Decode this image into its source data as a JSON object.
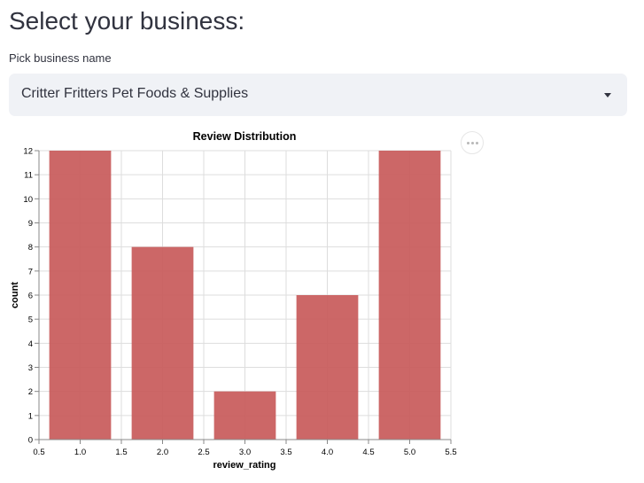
{
  "page": {
    "title": "Select your business:"
  },
  "business_select": {
    "label": "Pick business name",
    "value": "Critter Fritters Pet Foods & Supplies"
  },
  "chart_data": {
    "type": "bar",
    "title": "Review Distribution",
    "xlabel": "review_rating",
    "ylabel": "count",
    "x": [
      1,
      2,
      3,
      4,
      5
    ],
    "values": [
      12,
      8,
      2,
      6,
      12
    ],
    "xlim": [
      0.5,
      5.5
    ],
    "ylim": [
      0,
      12
    ],
    "xticks": [
      "0.5",
      "1.0",
      "1.5",
      "2.0",
      "2.5",
      "3.0",
      "3.5",
      "4.0",
      "4.5",
      "5.0",
      "5.5"
    ],
    "yticks": [
      "0",
      "1",
      "2",
      "3",
      "4",
      "5",
      "6",
      "7",
      "8",
      "9",
      "10",
      "11",
      "12"
    ],
    "grid": true,
    "bar_color": "#c85a5a"
  }
}
